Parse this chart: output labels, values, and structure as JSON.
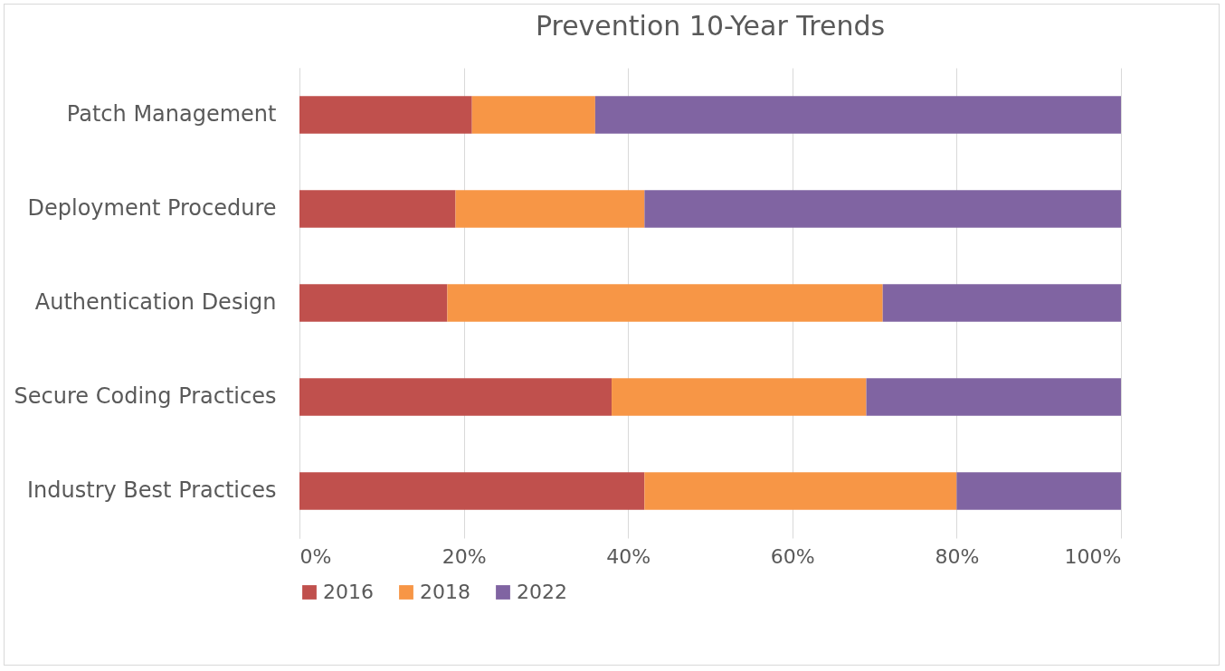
{
  "chart_data": {
    "type": "bar",
    "title": "Prevention 10-Year Trends",
    "orientation": "horizontal",
    "stacked": true,
    "categories": [
      "Patch Management",
      "Deployment Procedure",
      "Authentication Design",
      "Secure Coding Practices",
      "Industry Best Practices"
    ],
    "series": [
      {
        "name": "2016",
        "color": "#c0504d",
        "values": [
          21,
          19,
          18,
          38,
          42
        ]
      },
      {
        "name": "2018",
        "color": "#f79646",
        "values": [
          15,
          23,
          53,
          31,
          38
        ]
      },
      {
        "name": "2022",
        "color": "#8064a2",
        "values": [
          64,
          58,
          29,
          31,
          20
        ]
      }
    ],
    "xlim": [
      0,
      100
    ],
    "xticks": [
      {
        "value": 0,
        "label": "0%"
      },
      {
        "value": 20,
        "label": "20%"
      },
      {
        "value": 40,
        "label": "40%"
      },
      {
        "value": 60,
        "label": "60%"
      },
      {
        "value": 80,
        "label": "80%"
      },
      {
        "value": 100,
        "label": "100%"
      }
    ],
    "grid": "x",
    "legend": "bottom"
  }
}
